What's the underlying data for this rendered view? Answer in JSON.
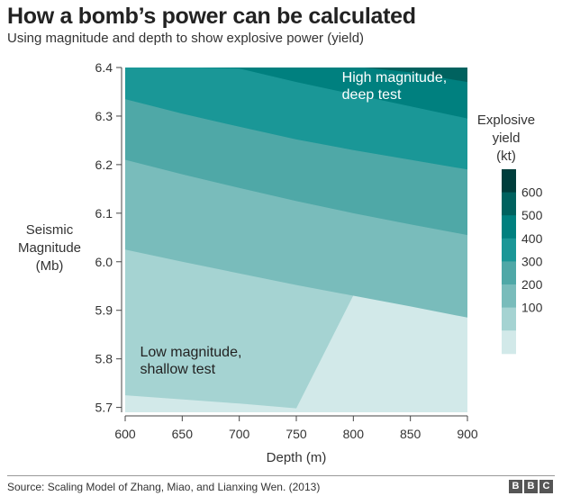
{
  "title": "How a bomb’s power can be calculated",
  "subtitle": "Using magnitude and depth to show explosive power (yield)",
  "source": "Source: Scaling Model of  Zhang, Miao, and Lianxing Wen. (2013)",
  "logo": [
    "B",
    "B",
    "C"
  ],
  "chart_data": {
    "type": "heatmap",
    "xlabel": "Depth (m)",
    "ylabel": "Seismic\nMagnitude\n(Mb)",
    "xlim": [
      600,
      900
    ],
    "ylim": [
      5.69,
      6.4
    ],
    "x_ticks": [
      "600",
      "650",
      "700",
      "750",
      "800",
      "850",
      "900"
    ],
    "y_ticks": [
      "5.7",
      "5.8",
      "5.9",
      "6.0",
      "6.1",
      "6.2",
      "6.3",
      "6.4"
    ],
    "grid": false,
    "legend": {
      "title": "Explosive\nyield\n(kt)",
      "placement": "right",
      "labels": [
        "600",
        "500",
        "400",
        "300",
        "200",
        "100"
      ]
    },
    "contour_levels_kt": [
      100,
      200,
      300,
      400,
      500,
      600
    ],
    "contours": [
      {
        "level": 100,
        "points": [
          [
            600,
            5.725
          ],
          [
            700,
            5.708
          ],
          [
            750,
            5.698
          ]
        ]
      },
      {
        "level": 200,
        "points": [
          [
            600,
            6.025
          ],
          [
            650,
            6.0
          ],
          [
            700,
            5.976
          ],
          [
            750,
            5.952
          ],
          [
            800,
            5.93
          ],
          [
            850,
            5.908
          ],
          [
            900,
            5.885
          ]
        ]
      },
      {
        "level": 300,
        "points": [
          [
            600,
            6.21
          ],
          [
            650,
            6.18
          ],
          [
            700,
            6.152
          ],
          [
            750,
            6.125
          ],
          [
            800,
            6.1
          ],
          [
            850,
            6.077
          ],
          [
            900,
            6.055
          ]
        ]
      },
      {
        "level": 400,
        "points": [
          [
            600,
            6.335
          ],
          [
            650,
            6.305
          ],
          [
            700,
            6.278
          ],
          [
            750,
            6.252
          ],
          [
            800,
            6.23
          ],
          [
            850,
            6.21
          ],
          [
            900,
            6.19
          ]
        ]
      },
      {
        "level": 500,
        "points": [
          [
            700,
            6.398
          ],
          [
            750,
            6.37
          ],
          [
            800,
            6.345
          ],
          [
            850,
            6.32
          ],
          [
            900,
            6.295
          ]
        ]
      },
      {
        "level": 600,
        "points": [
          [
            810,
            6.4
          ],
          [
            850,
            6.39
          ],
          [
            900,
            6.37
          ]
        ]
      }
    ],
    "band_colors": [
      "#d2e9e9",
      "#a5d3d2",
      "#79bcbb",
      "#4fa8a7",
      "#1a9797",
      "#00807f",
      "#00625f",
      "#003e3c"
    ],
    "annotations": [
      {
        "text": "High magnitude,\ndeep test",
        "x": 790,
        "y": 6.37
      },
      {
        "text": "Low magnitude,\nshallow test",
        "x": 613,
        "y": 5.805
      }
    ]
  }
}
